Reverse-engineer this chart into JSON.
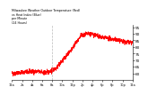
{
  "title": "Milwaukee Weather Outdoor Temperature (Red)\nvs Heat Index (Blue)\nper Minute\n(24 Hours)",
  "line_color": "#ff0000",
  "bg_color": "#ffffff",
  "y_min": 55,
  "y_max": 97,
  "x_min": 0,
  "x_max": 1439,
  "vline_x": 480,
  "y_ticks": [
    60,
    65,
    70,
    75,
    80,
    85,
    90,
    95
  ],
  "x_tick_positions": [
    0,
    120,
    240,
    360,
    480,
    600,
    720,
    840,
    960,
    1080,
    1200,
    1320,
    1439
  ],
  "x_tick_labels": [
    "12a",
    "2a",
    "4a",
    "6a",
    "8a",
    "10a",
    "12p",
    "2p",
    "4p",
    "6p",
    "8p",
    "10p",
    "12a"
  ]
}
